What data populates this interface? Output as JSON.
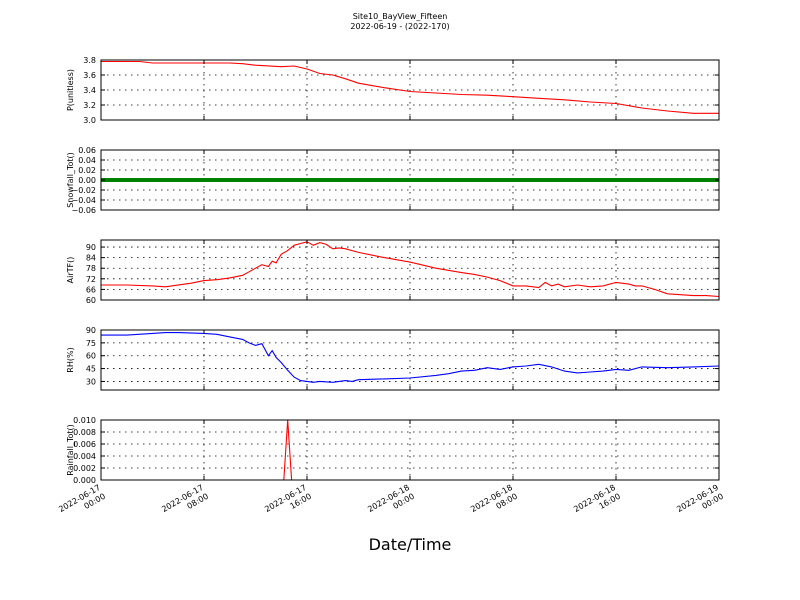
{
  "chart_data": {
    "type": "line",
    "title": "Site10_BayView_Fifteen",
    "subtitle": "2022-06-19 - (2022-170)",
    "xlabel": "Date/Time",
    "x_ticks": [
      "2022-06-17\n00:00",
      "2022-06-17\n08:00",
      "2022-06-17\n16:00",
      "2022-06-18\n00:00",
      "2022-06-18\n08:00",
      "2022-06-18\n16:00",
      "2022-06-19\n00:00"
    ],
    "x_range_hours": [
      0,
      48
    ],
    "grid": true,
    "panels": [
      {
        "ylabel": "P(unitless)",
        "ylim": [
          3.0,
          3.8
        ],
        "yticks": [
          "3.8",
          "3.6",
          "3.4",
          "3.2",
          "3.0"
        ],
        "ytick_values": [
          3.8,
          3.6,
          3.4,
          3.2,
          3.0
        ],
        "color": "#ff0000",
        "series": [
          {
            "x": [
              0,
              3,
              4,
              8,
              10,
              11,
              12,
              14,
              15,
              16,
              17,
              18,
              19,
              20,
              22,
              24,
              26,
              28,
              30,
              32,
              34,
              36,
              38,
              40,
              42,
              44,
              46,
              48
            ],
            "y": [
              3.78,
              3.78,
              3.76,
              3.76,
              3.76,
              3.75,
              3.73,
              3.71,
              3.72,
              3.68,
              3.62,
              3.6,
              3.55,
              3.49,
              3.43,
              3.38,
              3.36,
              3.34,
              3.33,
              3.31,
              3.29,
              3.27,
              3.24,
              3.22,
              3.16,
              3.12,
              3.09,
              3.09
            ]
          }
        ]
      },
      {
        "ylabel": "Snowfall_Tot()",
        "ylim": [
          -0.06,
          0.06
        ],
        "yticks": [
          "0.06",
          "0.04",
          "0.02",
          "0.00",
          "−0.02",
          "−0.04",
          "−0.06"
        ],
        "ytick_values": [
          0.06,
          0.04,
          0.02,
          0.0,
          -0.02,
          -0.04,
          -0.06
        ],
        "color": "#008000",
        "marker_line": true,
        "series": [
          {
            "x": [
              0,
              48
            ],
            "y": [
              0.0,
              0.0
            ]
          }
        ]
      },
      {
        "ylabel": "AirTF()",
        "ylim": [
          60,
          94
        ],
        "yticks": [
          "90",
          "84",
          "78",
          "72",
          "66",
          "60"
        ],
        "ytick_values": [
          90,
          84,
          78,
          72,
          66,
          60
        ],
        "color": "#ff0000",
        "series": [
          {
            "x": [
              0,
              2,
              4,
              5,
              7,
              8,
              9,
              10,
              11,
              11.5,
              12,
              12.5,
              13,
              13.3,
              13.6,
              14,
              14.5,
              15,
              15.5,
              16,
              16.5,
              17,
              17.5,
              18,
              18.5,
              19,
              20,
              22,
              24,
              26,
              28,
              29,
              30,
              31,
              32,
              33,
              34,
              34.5,
              35,
              35.5,
              36,
              37,
              38,
              39,
              40,
              41,
              41.5,
              42,
              42.5,
              43,
              44,
              45,
              46,
              47,
              48
            ],
            "y": [
              68.5,
              68.5,
              68,
              67.5,
              69.5,
              71,
              71.5,
              72.5,
              74,
              76,
              78,
              80,
              79,
              82,
              81,
              86,
              88,
              91,
              92,
              93,
              91,
              92.5,
              91.5,
              89,
              89.5,
              89,
              87,
              84,
              81.5,
              78,
              75.5,
              74.5,
              73,
              71,
              68,
              68,
              67,
              70,
              68,
              69,
              67.5,
              68.5,
              67.5,
              68,
              70,
              69,
              68,
              68,
              67,
              66,
              63.5,
              63,
              62.5,
              62.5,
              62
            ]
          }
        ]
      },
      {
        "ylabel": "RH(%)",
        "ylim": [
          20,
          90
        ],
        "yticks": [
          "90",
          "75",
          "60",
          "45",
          "30"
        ],
        "ytick_values": [
          90,
          75,
          60,
          45,
          30
        ],
        "color": "#0000ff",
        "series": [
          {
            "x": [
              0,
              2,
              4,
              5,
              6,
              8,
              9,
              10,
              11,
              11.5,
              12,
              12.5,
              13,
              13.3,
              13.6,
              14,
              14.5,
              15,
              15.5,
              16,
              16.5,
              17,
              18,
              19,
              19.5,
              20,
              22,
              24,
              26,
              27,
              28,
              29,
              30,
              31,
              32,
              33,
              34,
              35,
              36,
              37,
              38,
              39,
              40,
              41,
              42,
              44,
              46,
              48
            ],
            "y": [
              84,
              84,
              86,
              87,
              87,
              86,
              85,
              82,
              79,
              75,
              72,
              74,
              60,
              66,
              58,
              52,
              43,
              35,
              31,
              30,
              29,
              30,
              29,
              31,
              30,
              32,
              33,
              34,
              37,
              39,
              42,
              43,
              46,
              44,
              47,
              48,
              50,
              47,
              42,
              40,
              41,
              42,
              44,
              43,
              47,
              46,
              47,
              48
            ]
          }
        ]
      },
      {
        "ylabel": "Rainfall_Tot()",
        "ylim": [
          0,
          0.01
        ],
        "yticks": [
          "0.010",
          "0.008",
          "0.006",
          "0.004",
          "0.002",
          "0.000"
        ],
        "ytick_values": [
          0.01,
          0.008,
          0.006,
          0.004,
          0.002,
          0.0
        ],
        "color": "#ff0000",
        "series": [
          {
            "x": [
              0,
              14.2,
              14.5,
              14.8,
              48
            ],
            "y": [
              0,
              0,
              0.01,
              0,
              0
            ]
          }
        ]
      }
    ]
  }
}
